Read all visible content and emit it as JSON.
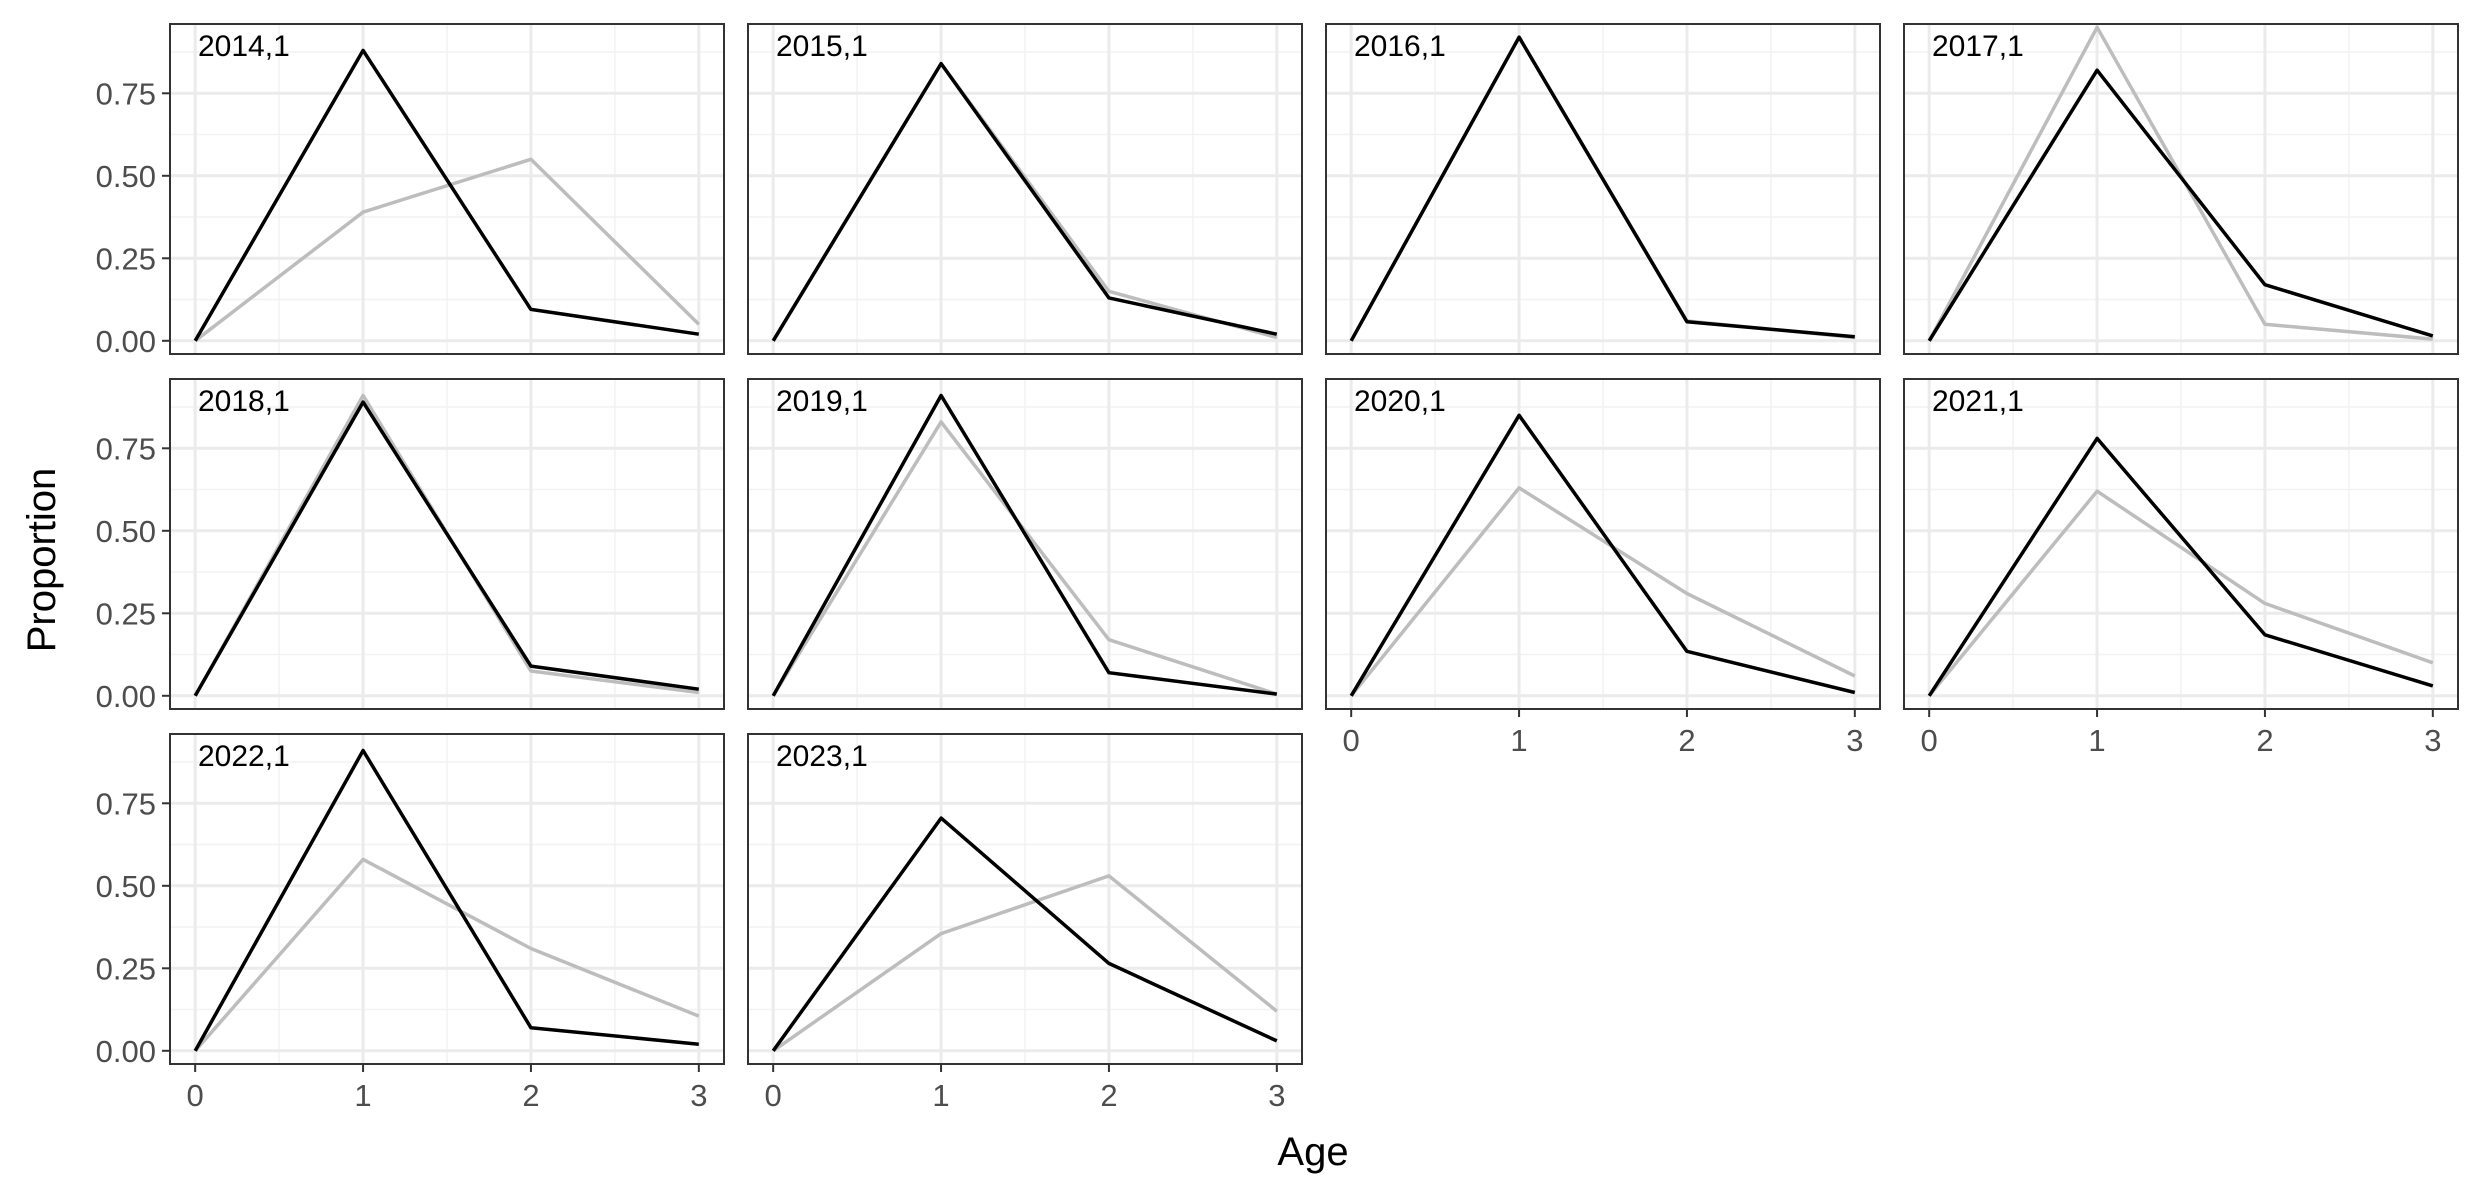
{
  "chart_data": {
    "type": "line",
    "layout": "faceted",
    "xlabel": "Age",
    "ylabel": "Proportion",
    "x": [
      0,
      1,
      2,
      3
    ],
    "xlim": [
      -0.15,
      3.15
    ],
    "ylim": [
      -0.04,
      0.96
    ],
    "x_ticks": [
      0,
      1,
      2,
      3
    ],
    "y_ticks": [
      0,
      0.25,
      0.5,
      0.75
    ],
    "y_tick_labels": [
      "0.00",
      "0.25",
      "0.50",
      "0.75"
    ],
    "grid": true,
    "legend": "none",
    "series_colors": {
      "observed": "#bdbdbd",
      "predicted": "#000000"
    },
    "panels": [
      {
        "label": "2014,1",
        "observed": [
          0,
          0.39,
          0.55,
          0.05
        ],
        "predicted": [
          0,
          0.88,
          0.095,
          0.02
        ]
      },
      {
        "label": "2015,1",
        "observed": [
          0,
          0.84,
          0.15,
          0.01
        ],
        "predicted": [
          0,
          0.84,
          0.13,
          0.02
        ]
      },
      {
        "label": "2016,1",
        "observed": [
          0,
          0.92,
          0.06,
          0.01
        ],
        "predicted": [
          0,
          0.92,
          0.058,
          0.012
        ]
      },
      {
        "label": "2017,1",
        "observed": [
          0,
          0.95,
          0.05,
          0.005
        ],
        "predicted": [
          0,
          0.82,
          0.17,
          0.015
        ]
      },
      {
        "label": "2018,1",
        "observed": [
          0,
          0.91,
          0.075,
          0.01
        ],
        "predicted": [
          0,
          0.89,
          0.09,
          0.02
        ]
      },
      {
        "label": "2019,1",
        "observed": [
          0,
          0.83,
          0.17,
          0.005
        ],
        "predicted": [
          0,
          0.91,
          0.07,
          0.005
        ]
      },
      {
        "label": "2020,1",
        "observed": [
          0,
          0.63,
          0.31,
          0.06
        ],
        "predicted": [
          0,
          0.85,
          0.135,
          0.01
        ]
      },
      {
        "label": "2021,1",
        "observed": [
          0,
          0.62,
          0.28,
          0.1
        ],
        "predicted": [
          0,
          0.78,
          0.185,
          0.03
        ]
      },
      {
        "label": "2022,1",
        "observed": [
          0,
          0.58,
          0.31,
          0.105
        ],
        "predicted": [
          0,
          0.91,
          0.07,
          0.02
        ]
      },
      {
        "label": "2023,1",
        "observed": [
          0,
          0.355,
          0.53,
          0.12
        ],
        "predicted": [
          0,
          0.705,
          0.265,
          0.03
        ]
      }
    ]
  }
}
